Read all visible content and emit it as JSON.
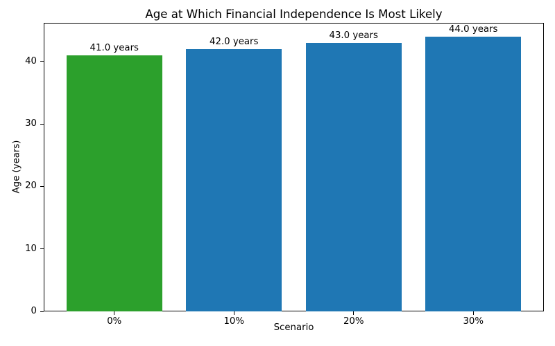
{
  "chart_data": {
    "type": "bar",
    "title": "Age at Which Financial Independence Is Most Likely",
    "xlabel": "Scenario",
    "ylabel": "Age (years)",
    "categories": [
      "0%",
      "10%",
      "20%",
      "30%"
    ],
    "values": [
      41.0,
      42.0,
      43.0,
      44.0
    ],
    "bar_labels": [
      "41.0 years",
      "42.0 years",
      "43.0 years",
      "44.0 years"
    ],
    "bar_colors": [
      "#2ca02c",
      "#1f77b4",
      "#1f77b4",
      "#1f77b4"
    ],
    "yticks": [
      0,
      10,
      20,
      30,
      40
    ],
    "ylim": [
      0,
      46.2
    ],
    "grid": false,
    "legend": "none",
    "background_color": "#ffffff",
    "axis_color": "#000000",
    "text_color": "#000000"
  }
}
